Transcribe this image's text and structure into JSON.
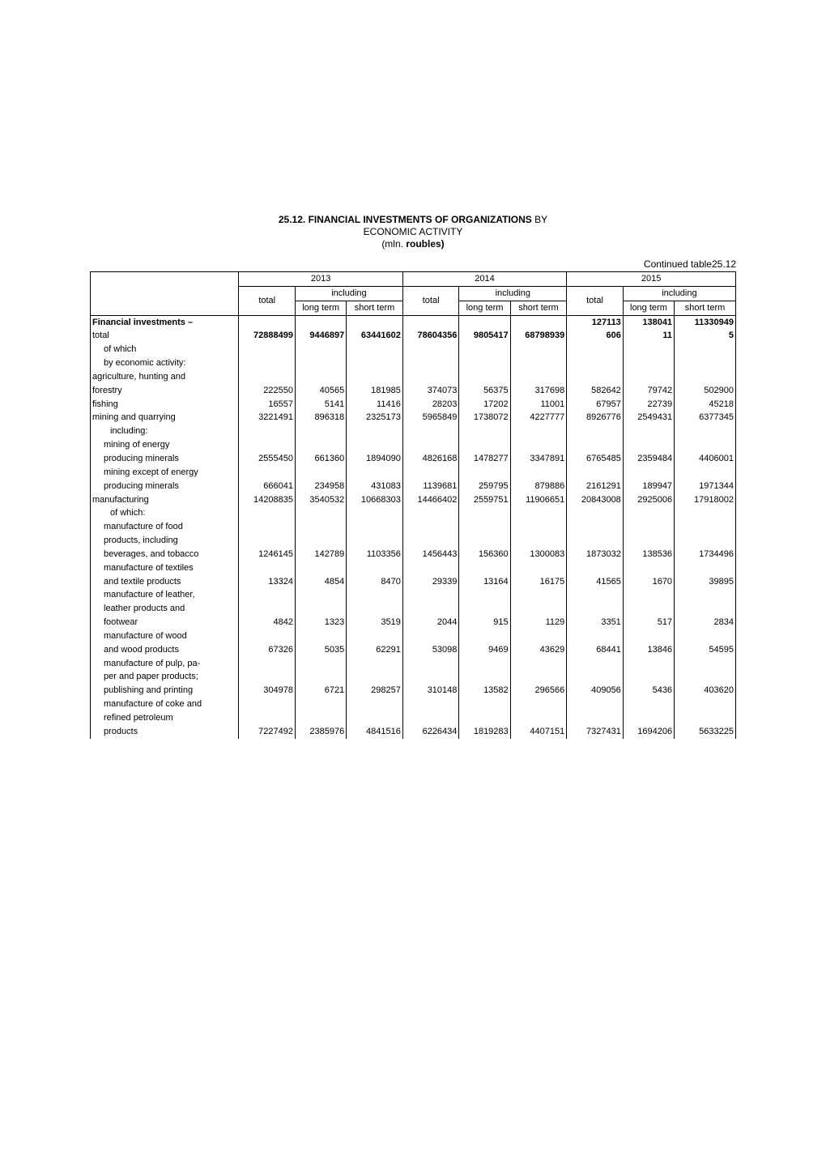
{
  "title": {
    "number": "25.12.",
    "main": "FINANCIAL INVESTMENTS OF ORGANIZATIONS",
    "by": "BY",
    "subtitle": "ECONOMIC ACTIVITY",
    "units_prefix": "(mln.",
    "units_bold": "roubles)",
    "continued": "Continued table25.12"
  },
  "header": {
    "years": [
      "2013",
      "2014",
      "2015"
    ],
    "including": "including",
    "total": "total",
    "long_term": "long term",
    "short_term": "short term",
    "short_term_sp": "short  term"
  },
  "rows": [
    {
      "label": "Financial investments –",
      "indent": 0,
      "bold": true,
      "cells": [
        "",
        "",
        "",
        "",
        "",
        "",
        "127113",
        "138041",
        "11330949"
      ],
      "boldcells": true
    },
    {
      "label": "total",
      "indent": 0,
      "bold": false,
      "cells": [
        "72888499",
        "9446897",
        "63441602",
        "78604356",
        "9805417",
        "68798939",
        "606",
        "11",
        "5"
      ],
      "boldcells": true
    },
    {
      "label": "of which",
      "indent": 1,
      "cells": [
        "",
        "",
        "",
        "",
        "",
        "",
        "",
        "",
        ""
      ]
    },
    {
      "label": "by economic activity:",
      "indent": 1,
      "cells": [
        "",
        "",
        "",
        "",
        "",
        "",
        "",
        "",
        ""
      ]
    },
    {
      "label": "agriculture, hunting and",
      "indent": 0,
      "cells": [
        "",
        "",
        "",
        "",
        "",
        "",
        "",
        "",
        ""
      ]
    },
    {
      "label": "forestry",
      "indent": 0,
      "cells": [
        "222550",
        "40565",
        "181985",
        "374073",
        "56375",
        "317698",
        "582642",
        "79742",
        "502900"
      ]
    },
    {
      "label": "fishing",
      "indent": 0,
      "cells": [
        "16557",
        "5141",
        "11416",
        "28203",
        "17202",
        "11001",
        "67957",
        "22739",
        "45218"
      ]
    },
    {
      "label": "mining and quarrying",
      "indent": 0,
      "cells": [
        "3221491",
        "896318",
        "2325173",
        "5965849",
        "1738072",
        "4227777",
        "8926776",
        "2549431",
        "6377345"
      ]
    },
    {
      "label": "including:",
      "indent": 2,
      "cells": [
        "",
        "",
        "",
        "",
        "",
        "",
        "",
        "",
        ""
      ]
    },
    {
      "label": "mining of energy",
      "indent": 1,
      "cells": [
        "",
        "",
        "",
        "",
        "",
        "",
        "",
        "",
        ""
      ]
    },
    {
      "label": "producing minerals",
      "indent": 1,
      "cells": [
        "2555450",
        "661360",
        "1894090",
        "4826168",
        "1478277",
        "3347891",
        "6765485",
        "2359484",
        "4406001"
      ]
    },
    {
      "label": "mining except of energy",
      "indent": 1,
      "cells": [
        "",
        "",
        "",
        "",
        "",
        "",
        "",
        "",
        ""
      ]
    },
    {
      "label": "producing minerals",
      "indent": 1,
      "cells": [
        "666041",
        "234958",
        "431083",
        "1139681",
        "259795",
        "879886",
        "2161291",
        "189947",
        "1971344"
      ]
    },
    {
      "label": "manufacturing",
      "indent": 0,
      "cells": [
        "14208835",
        "3540532",
        "10668303",
        "14466402",
        "2559751",
        "11906651",
        "20843008",
        "2925006",
        "17918002"
      ]
    },
    {
      "label": "of which:",
      "indent": 2,
      "cells": [
        "",
        "",
        "",
        "",
        "",
        "",
        "",
        "",
        ""
      ]
    },
    {
      "label": "manufacture of food",
      "indent": 1,
      "cells": [
        "",
        "",
        "",
        "",
        "",
        "",
        "",
        "",
        ""
      ]
    },
    {
      "label": "products, including",
      "indent": 1,
      "cells": [
        "",
        "",
        "",
        "",
        "",
        "",
        "",
        "",
        ""
      ]
    },
    {
      "label": "beverages, and tobacco",
      "indent": 1,
      "cells": [
        "1246145",
        "142789",
        "1103356",
        "1456443",
        "156360",
        "1300083",
        "1873032",
        "138536",
        "1734496"
      ]
    },
    {
      "label": "manufacture of textiles",
      "indent": 1,
      "cells": [
        "",
        "",
        "",
        "",
        "",
        "",
        "",
        "",
        ""
      ]
    },
    {
      "label": "and textile products",
      "indent": 1,
      "cells": [
        "13324",
        "4854",
        "8470",
        "29339",
        "13164",
        "16175",
        "41565",
        "1670",
        "39895"
      ]
    },
    {
      "label": "manufacture of leather,",
      "indent": 1,
      "cells": [
        "",
        "",
        "",
        "",
        "",
        "",
        "",
        "",
        ""
      ]
    },
    {
      "label": "leather products and",
      "indent": 1,
      "cells": [
        "",
        "",
        "",
        "",
        "",
        "",
        "",
        "",
        ""
      ]
    },
    {
      "label": "footwear",
      "indent": 1,
      "cells": [
        "4842",
        "1323",
        "3519",
        "2044",
        "915",
        "1129",
        "3351",
        "517",
        "2834"
      ]
    },
    {
      "label": "manufacture of wood",
      "indent": 1,
      "cells": [
        "",
        "",
        "",
        "",
        "",
        "",
        "",
        "",
        ""
      ]
    },
    {
      "label": "and wood products",
      "indent": 1,
      "cells": [
        "67326",
        "5035",
        "62291",
        "53098",
        "9469",
        "43629",
        "68441",
        "13846",
        "54595"
      ]
    },
    {
      "label": "manufacture of pulp, pa-",
      "indent": 1,
      "cells": [
        "",
        "",
        "",
        "",
        "",
        "",
        "",
        "",
        ""
      ]
    },
    {
      "label": "per and paper products;",
      "indent": 1,
      "cells": [
        "",
        "",
        "",
        "",
        "",
        "",
        "",
        "",
        ""
      ]
    },
    {
      "label": "publishing and printing",
      "indent": 1,
      "cells": [
        "304978",
        "6721",
        "298257",
        "310148",
        "13582",
        "296566",
        "409056",
        "5436",
        "403620"
      ]
    },
    {
      "label": "manufacture of coke and",
      "indent": 1,
      "cells": [
        "",
        "",
        "",
        "",
        "",
        "",
        "",
        "",
        ""
      ]
    },
    {
      "label": "refined petroleum",
      "indent": 1,
      "cells": [
        "",
        "",
        "",
        "",
        "",
        "",
        "",
        "",
        ""
      ]
    },
    {
      "label": "products",
      "indent": 1,
      "cells": [
        "7227492",
        "2385976",
        "4841516",
        "6226434",
        "1819283",
        "4407151",
        "7327431",
        "1694206",
        "5633225"
      ]
    }
  ]
}
